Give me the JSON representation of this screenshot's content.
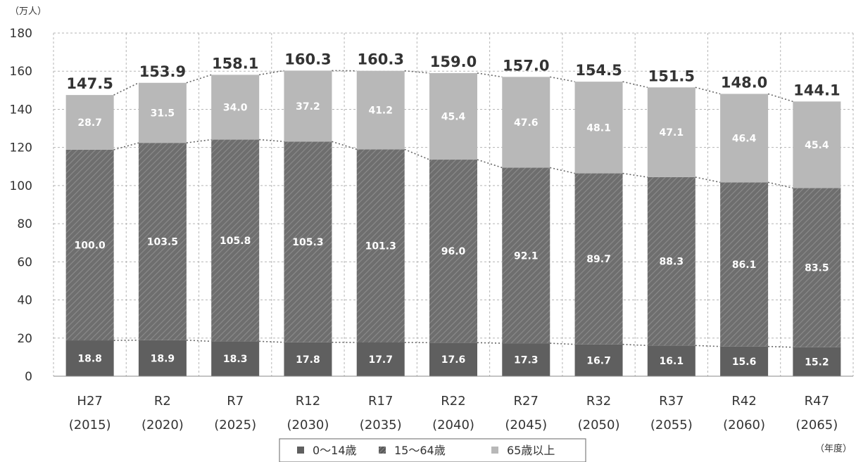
{
  "chart_data": {
    "type": "bar",
    "stacked": true,
    "categories": [
      {
        "label": "H27",
        "year": "(2015)"
      },
      {
        "label": "R2",
        "year": "(2020)"
      },
      {
        "label": "R7",
        "year": "(2025)"
      },
      {
        "label": "R12",
        "year": "(2030)"
      },
      {
        "label": "R17",
        "year": "(2035)"
      },
      {
        "label": "R22",
        "year": "(2040)"
      },
      {
        "label": "R27",
        "year": "(2045)"
      },
      {
        "label": "R32",
        "year": "(2050)"
      },
      {
        "label": "R37",
        "year": "(2055)"
      },
      {
        "label": "R42",
        "year": "(2060)"
      },
      {
        "label": "R47",
        "year": "(2065)"
      }
    ],
    "series": [
      {
        "name": "0～14歳",
        "color": "#5f5f5f",
        "pattern": "solid",
        "values": [
          18.8,
          18.9,
          18.3,
          17.8,
          17.7,
          17.6,
          17.3,
          16.7,
          16.1,
          15.6,
          15.2
        ],
        "labels": [
          "18.8",
          "18.9",
          "18.3",
          "17.8",
          "17.7",
          "17.6",
          "17.3",
          "16.7",
          "16.1",
          "15.6",
          "15.2"
        ]
      },
      {
        "name": "15～64歳",
        "color": "#6e6e6e",
        "pattern": "hatched",
        "values": [
          100.0,
          103.5,
          105.8,
          105.3,
          101.3,
          96.0,
          92.1,
          89.7,
          88.3,
          86.1,
          83.5
        ],
        "labels": [
          "100.0",
          "103.5",
          "105.8",
          "105.3",
          "101.3",
          "96.0",
          "92.1",
          "89.7",
          "88.3",
          "86.1",
          "83.5"
        ]
      },
      {
        "name": "65歳以上",
        "color": "#b8b8b8",
        "pattern": "solid",
        "values": [
          28.7,
          31.5,
          34.0,
          37.2,
          41.2,
          45.4,
          47.6,
          48.1,
          47.1,
          46.4,
          45.4
        ],
        "labels": [
          "28.7",
          "31.5",
          "34.0",
          "37.2",
          "41.2",
          "45.4",
          "47.6",
          "48.1",
          "47.1",
          "46.4",
          "45.4"
        ]
      }
    ],
    "totals": [
      147.5,
      153.9,
      158.1,
      160.3,
      160.3,
      159.0,
      157.0,
      154.5,
      151.5,
      148.0,
      144.1
    ],
    "total_labels": [
      "147.5",
      "153.9",
      "158.1",
      "160.3",
      "160.3",
      "159.0",
      "157.0",
      "154.5",
      "151.5",
      "148.0",
      "144.1"
    ],
    "ylim": [
      0,
      180
    ],
    "yticks": [
      0,
      20,
      40,
      60,
      80,
      100,
      120,
      140,
      160,
      180
    ],
    "ylabel": "（万人）",
    "xlabel": "（年度）",
    "grid": true,
    "legend": "bottom-center",
    "connector_lines": true
  }
}
